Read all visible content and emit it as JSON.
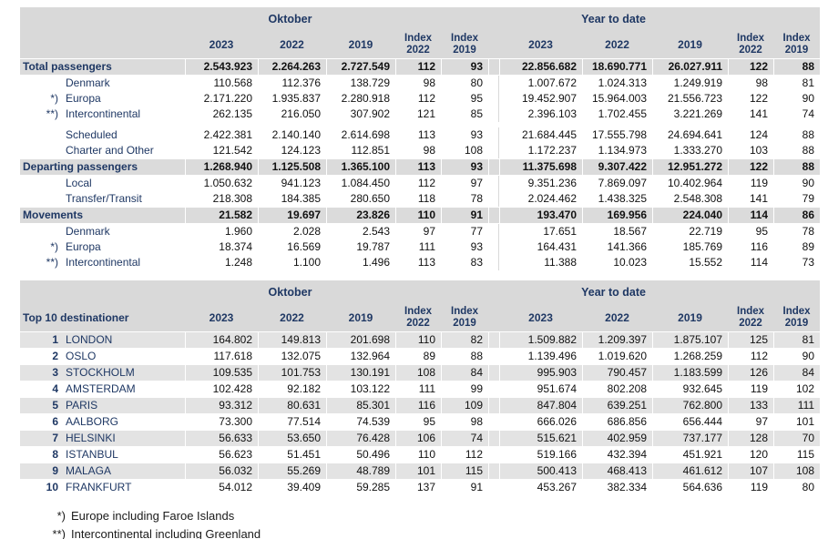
{
  "colors": {
    "navy": "#1f3864",
    "header_bg": "#d9d9d9",
    "fill_bg": "#dbdbdb",
    "stripe_bg": "#e3e3e3"
  },
  "header": {
    "oktober": "Oktober",
    "ytd": "Year to date",
    "years": [
      "2023",
      "2022",
      "2019"
    ],
    "index_label": "Index",
    "index_years": [
      "2022",
      "2019"
    ]
  },
  "table1": {
    "rows": [
      {
        "prefix": "",
        "label": "Total passengers",
        "bold": true,
        "okt": [
          "2.543.923",
          "2.264.263",
          "2.727.549",
          "112",
          "93"
        ],
        "ytd": [
          "22.856.682",
          "18.690.771",
          "26.027.911",
          "122",
          "88"
        ]
      },
      {
        "prefix": "",
        "label": "Denmark",
        "bold": false,
        "okt": [
          "110.568",
          "112.376",
          "138.729",
          "98",
          "80"
        ],
        "ytd": [
          "1.007.672",
          "1.024.313",
          "1.249.919",
          "98",
          "81"
        ]
      },
      {
        "prefix": "*)",
        "label": "Europa",
        "bold": false,
        "okt": [
          "2.171.220",
          "1.935.837",
          "2.280.918",
          "112",
          "95"
        ],
        "ytd": [
          "19.452.907",
          "15.964.003",
          "21.556.723",
          "122",
          "90"
        ]
      },
      {
        "prefix": "**)",
        "label": "Intercontinental",
        "bold": false,
        "okt": [
          "262.135",
          "216.050",
          "307.902",
          "121",
          "85"
        ],
        "ytd": [
          "2.396.103",
          "1.702.455",
          "3.221.269",
          "141",
          "74"
        ]
      },
      {
        "gap": true
      },
      {
        "prefix": "",
        "label": "Scheduled",
        "bold": false,
        "okt": [
          "2.422.381",
          "2.140.140",
          "2.614.698",
          "113",
          "93"
        ],
        "ytd": [
          "21.684.445",
          "17.555.798",
          "24.694.641",
          "124",
          "88"
        ]
      },
      {
        "prefix": "",
        "label": "Charter and Other",
        "bold": false,
        "okt": [
          "121.542",
          "124.123",
          "112.851",
          "98",
          "108"
        ],
        "ytd": [
          "1.172.237",
          "1.134.973",
          "1.333.270",
          "103",
          "88"
        ]
      },
      {
        "prefix": "",
        "label": "Departing passengers",
        "bold": true,
        "okt": [
          "1.268.940",
          "1.125.508",
          "1.365.100",
          "113",
          "93"
        ],
        "ytd": [
          "11.375.698",
          "9.307.422",
          "12.951.272",
          "122",
          "88"
        ]
      },
      {
        "prefix": "",
        "label": "Local",
        "bold": false,
        "okt": [
          "1.050.632",
          "941.123",
          "1.084.450",
          "112",
          "97"
        ],
        "ytd": [
          "9.351.236",
          "7.869.097",
          "10.402.964",
          "119",
          "90"
        ]
      },
      {
        "prefix": "",
        "label": "Transfer/Transit",
        "bold": false,
        "okt": [
          "218.308",
          "184.385",
          "280.650",
          "118",
          "78"
        ],
        "ytd": [
          "2.024.462",
          "1.438.325",
          "2.548.308",
          "141",
          "79"
        ]
      },
      {
        "prefix": "",
        "label": "Movements",
        "bold": true,
        "okt": [
          "21.582",
          "19.697",
          "23.826",
          "110",
          "91"
        ],
        "ytd": [
          "193.470",
          "169.956",
          "224.040",
          "114",
          "86"
        ]
      },
      {
        "prefix": "",
        "label": "Denmark",
        "bold": false,
        "okt": [
          "1.960",
          "2.028",
          "2.543",
          "97",
          "77"
        ],
        "ytd": [
          "17.651",
          "18.567",
          "22.719",
          "95",
          "78"
        ]
      },
      {
        "prefix": "*)",
        "label": "Europa",
        "bold": false,
        "okt": [
          "18.374",
          "16.569",
          "19.787",
          "111",
          "93"
        ],
        "ytd": [
          "164.431",
          "141.366",
          "185.769",
          "116",
          "89"
        ]
      },
      {
        "prefix": "**)",
        "label": "Intercontinental",
        "bold": false,
        "okt": [
          "1.248",
          "1.100",
          "1.496",
          "113",
          "83"
        ],
        "ytd": [
          "11.388",
          "10.023",
          "15.552",
          "114",
          "73"
        ]
      }
    ]
  },
  "table2": {
    "label_header": "Top 10 destinationer",
    "rows": [
      {
        "rank": "1",
        "city": "LONDON",
        "okt": [
          "164.802",
          "149.813",
          "201.698",
          "110",
          "82"
        ],
        "ytd": [
          "1.509.882",
          "1.209.397",
          "1.875.107",
          "125",
          "81"
        ]
      },
      {
        "rank": "2",
        "city": "OSLO",
        "okt": [
          "117.618",
          "132.075",
          "132.964",
          "89",
          "88"
        ],
        "ytd": [
          "1.139.496",
          "1.019.620",
          "1.268.259",
          "112",
          "90"
        ]
      },
      {
        "rank": "3",
        "city": "STOCKHOLM",
        "okt": [
          "109.535",
          "101.753",
          "130.191",
          "108",
          "84"
        ],
        "ytd": [
          "995.903",
          "790.457",
          "1.183.599",
          "126",
          "84"
        ]
      },
      {
        "rank": "4",
        "city": "AMSTERDAM",
        "okt": [
          "102.428",
          "92.182",
          "103.122",
          "111",
          "99"
        ],
        "ytd": [
          "951.674",
          "802.208",
          "932.645",
          "119",
          "102"
        ]
      },
      {
        "rank": "5",
        "city": "PARIS",
        "okt": [
          "93.312",
          "80.631",
          "85.301",
          "116",
          "109"
        ],
        "ytd": [
          "847.804",
          "639.251",
          "762.800",
          "133",
          "111"
        ]
      },
      {
        "rank": "6",
        "city": "AALBORG",
        "okt": [
          "73.300",
          "77.514",
          "74.539",
          "95",
          "98"
        ],
        "ytd": [
          "666.026",
          "686.856",
          "656.444",
          "97",
          "101"
        ]
      },
      {
        "rank": "7",
        "city": "HELSINKI",
        "okt": [
          "56.633",
          "53.650",
          "76.428",
          "106",
          "74"
        ],
        "ytd": [
          "515.621",
          "402.959",
          "737.177",
          "128",
          "70"
        ]
      },
      {
        "rank": "8",
        "city": "ISTANBUL",
        "okt": [
          "56.623",
          "51.451",
          "50.496",
          "110",
          "112"
        ],
        "ytd": [
          "519.166",
          "432.394",
          "451.921",
          "120",
          "115"
        ]
      },
      {
        "rank": "9",
        "city": "MALAGA",
        "okt": [
          "56.032",
          "55.269",
          "48.789",
          "101",
          "115"
        ],
        "ytd": [
          "500.413",
          "468.413",
          "461.612",
          "107",
          "108"
        ]
      },
      {
        "rank": "10",
        "city": "FRANKFURT",
        "okt": [
          "54.012",
          "39.409",
          "59.285",
          "137",
          "91"
        ],
        "ytd": [
          "453.267",
          "382.334",
          "564.636",
          "119",
          "80"
        ]
      }
    ]
  },
  "footnotes": [
    {
      "prefix": "*)",
      "text": "Europe including Faroe Islands"
    },
    {
      "prefix": "**)",
      "text": "Intercontinental including Greenland"
    }
  ]
}
